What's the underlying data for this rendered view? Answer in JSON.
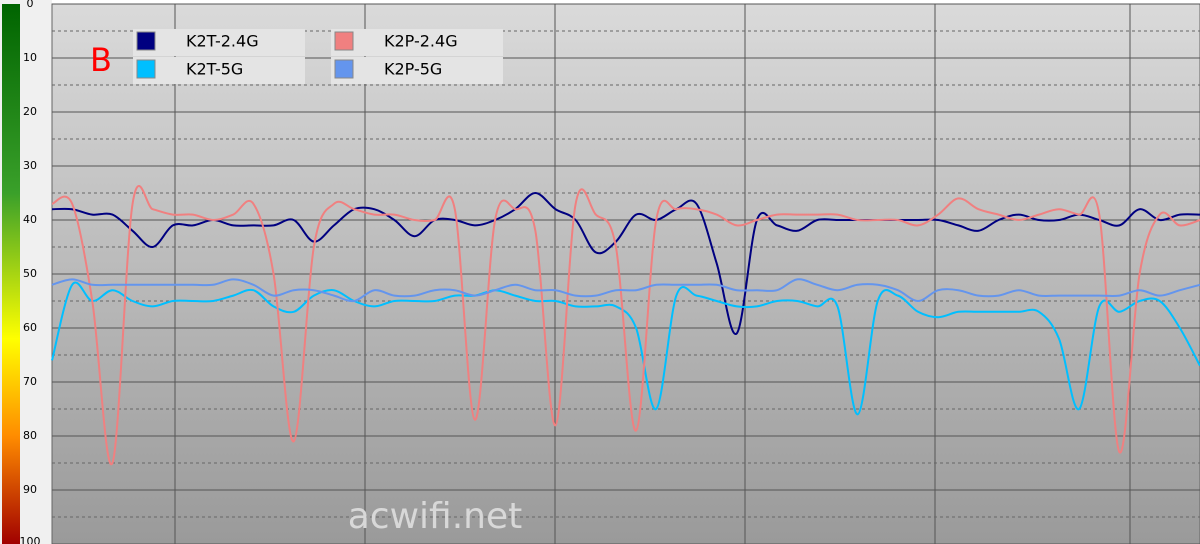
{
  "chart_data": {
    "type": "line",
    "annotation": "B",
    "watermark": "acwifi.net",
    "ylim": [
      0,
      100
    ],
    "y_inverted": true,
    "yticks": [
      0,
      10,
      20,
      30,
      40,
      50,
      60,
      70,
      80,
      90,
      100
    ],
    "grid": true,
    "legend": "upper left",
    "series": [
      {
        "name": "K2T-2.4G",
        "color": "#000080",
        "values": [
          38,
          38,
          39,
          39,
          42,
          45,
          41,
          41,
          40,
          41,
          41,
          41,
          40,
          44,
          41,
          38,
          38,
          40,
          43,
          40,
          40,
          41,
          40,
          38,
          35,
          38,
          40,
          46,
          44,
          39,
          40,
          38,
          37,
          48,
          61,
          40,
          41,
          42,
          40,
          40,
          40,
          40,
          40,
          40,
          40,
          41,
          42,
          40,
          39,
          40,
          40,
          39,
          40,
          41,
          38,
          40,
          39,
          39
        ]
      },
      {
        "name": "K2T-5G",
        "color": "#00bfff",
        "values": [
          66,
          52,
          55,
          53,
          55,
          56,
          55,
          55,
          55,
          54,
          53,
          56,
          57,
          54,
          53,
          55,
          56,
          55,
          55,
          55,
          54,
          54,
          53,
          54,
          55,
          55,
          56,
          56,
          56,
          60,
          75,
          54,
          54,
          55,
          56,
          56,
          55,
          55,
          56,
          56,
          76,
          55,
          54,
          57,
          58,
          57,
          57,
          57,
          57,
          57,
          62,
          75,
          56,
          57,
          55,
          55,
          60,
          67
        ]
      },
      {
        "name": "K2P-2.4G",
        "color": "#f08080",
        "values": [
          37,
          37,
          55,
          85,
          37,
          38,
          39,
          39,
          40,
          39,
          37,
          50,
          81,
          45,
          37,
          38,
          39,
          39,
          40,
          40,
          38,
          77,
          40,
          38,
          42,
          78,
          37,
          39,
          45,
          79,
          40,
          38,
          38,
          39,
          41,
          40,
          39,
          39,
          39,
          39,
          40,
          40,
          40,
          41,
          39,
          36,
          38,
          39,
          40,
          39,
          38,
          39,
          39,
          83,
          50,
          39,
          41,
          40
        ]
      },
      {
        "name": "K2P-5G",
        "color": "#6495ed",
        "values": [
          52,
          51,
          52,
          52,
          52,
          52,
          52,
          52,
          52,
          51,
          52,
          54,
          53,
          53,
          54,
          55,
          53,
          54,
          54,
          53,
          53,
          54,
          53,
          52,
          53,
          53,
          54,
          54,
          53,
          53,
          52,
          52,
          52,
          52,
          53,
          53,
          53,
          51,
          52,
          53,
          52,
          52,
          53,
          55,
          53,
          53,
          54,
          54,
          53,
          54,
          54,
          54,
          54,
          54,
          53,
          54,
          53,
          52
        ]
      }
    ]
  }
}
